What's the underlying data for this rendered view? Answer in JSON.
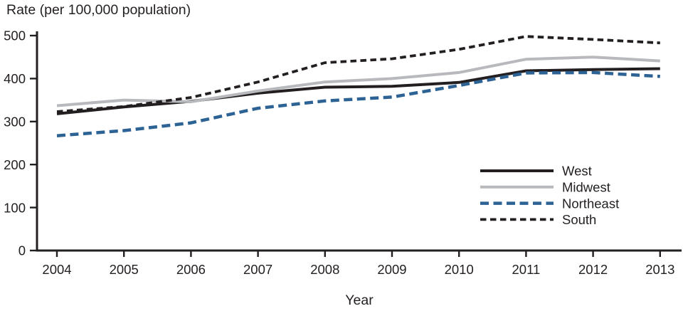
{
  "chart_data": {
    "type": "line",
    "title": "Rate (per 100,000 population)",
    "xlabel": "Year",
    "ylabel": "",
    "x": [
      "2004",
      "2005",
      "2006",
      "2007",
      "2008",
      "2009",
      "2010",
      "2011",
      "2012",
      "2013"
    ],
    "ylim": [
      0,
      500
    ],
    "yticks": [
      "0",
      "100",
      "200",
      "300",
      "400",
      "500"
    ],
    "ytick_values": [
      0,
      100,
      200,
      300,
      400,
      500
    ],
    "grid": false,
    "legend_position": "inside-right-middle",
    "axis_color": "#231f20",
    "text_color": "#231f20",
    "series": [
      {
        "name": "West",
        "color": "#231f20",
        "line_style": "solid",
        "dash_pattern": "",
        "stroke_width": 4,
        "values": [
          318,
          334,
          347,
          366,
          380,
          382,
          391,
          418,
          421,
          423
        ]
      },
      {
        "name": "Midwest",
        "color": "#b7b9bc",
        "line_style": "solid",
        "dash_pattern": "",
        "stroke_width": 4,
        "values": [
          337,
          350,
          346,
          371,
          392,
          400,
          414,
          445,
          450,
          441
        ]
      },
      {
        "name": "Northeast",
        "color": "#2d6394",
        "line_style": "dashed",
        "dash_pattern": "12 6.5",
        "stroke_width": 4.5,
        "values": [
          267,
          279,
          297,
          331,
          348,
          357,
          384,
          413,
          414,
          405
        ]
      },
      {
        "name": "South",
        "color": "#231f20",
        "line_style": "dashed",
        "dash_pattern": "8.5 5.5",
        "stroke_width": 3.8,
        "values": [
          323,
          335,
          356,
          392,
          437,
          446,
          468,
          498,
          491,
          483
        ]
      }
    ]
  }
}
